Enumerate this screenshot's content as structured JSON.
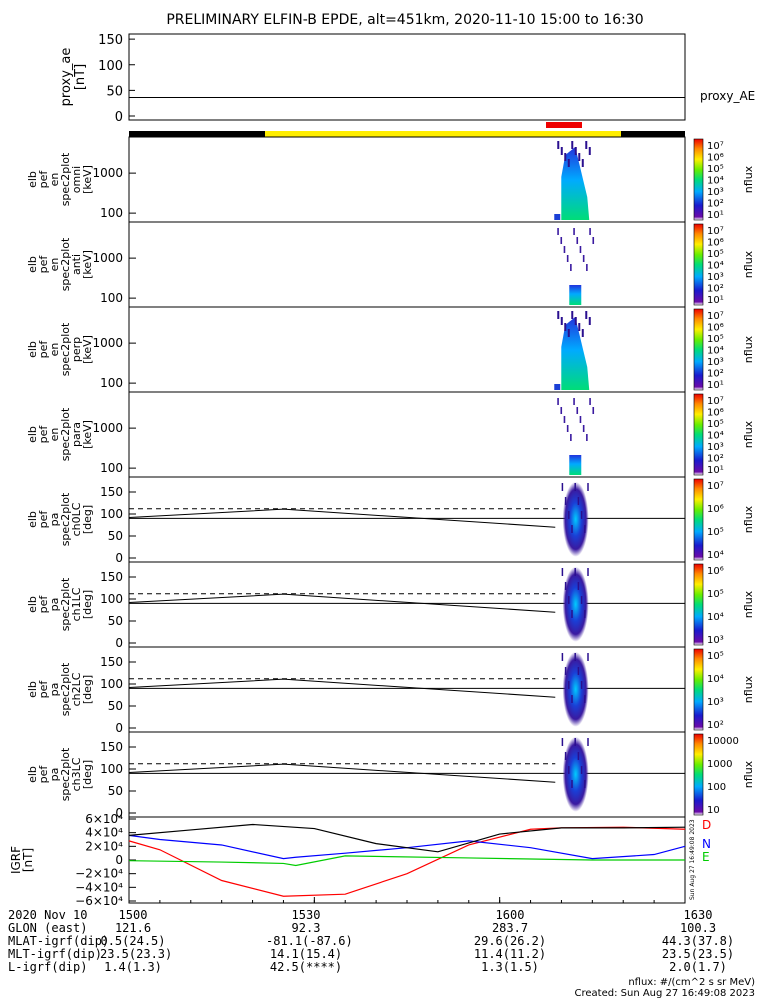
{
  "title": "PRELIMINARY ELFIN-B EPDE, alt=451km, 2020-11-10 15:00 to 16:30",
  "chart_data": [
    {
      "type": "line",
      "ylabel_lines": [
        "proxy_ae",
        "[nT]"
      ],
      "yticks": [
        "150",
        "100",
        "50",
        "0"
      ],
      "ylim": [
        0,
        150
      ],
      "legend": "proxy_AE",
      "series": [
        {
          "name": "proxy_AE",
          "x": [
            0,
            90
          ],
          "y": [
            36,
            36
          ]
        }
      ]
    },
    {
      "type": "heatmap",
      "ylabel_lines": [
        "elb",
        "pef",
        "en",
        "spec2plot",
        "omni",
        "[keV]"
      ],
      "yticks": [
        "1000",
        "100"
      ],
      "colorbar": {
        "label": "nflux",
        "ticks": [
          "10⁷",
          "10⁶",
          "10⁵",
          "10⁴",
          "10³",
          "10²",
          "10¹"
        ]
      }
    },
    {
      "type": "heatmap",
      "ylabel_lines": [
        "elb",
        "pef",
        "en",
        "spec2plot",
        "anti",
        "[keV]"
      ],
      "yticks": [
        "1000",
        "100"
      ],
      "colorbar": {
        "label": "nflux",
        "ticks": [
          "10⁷",
          "10⁶",
          "10⁵",
          "10⁴",
          "10³",
          "10²",
          "10¹"
        ]
      }
    },
    {
      "type": "heatmap",
      "ylabel_lines": [
        "elb",
        "pef",
        "en",
        "spec2plot",
        "perp",
        "[keV]"
      ],
      "yticks": [
        "1000",
        "100"
      ],
      "colorbar": {
        "label": "nflux",
        "ticks": [
          "10⁷",
          "10⁶",
          "10⁵",
          "10⁴",
          "10³",
          "10²",
          "10¹"
        ]
      }
    },
    {
      "type": "heatmap",
      "ylabel_lines": [
        "elb",
        "pef",
        "en",
        "spec2plot",
        "para",
        "[keV]"
      ],
      "yticks": [
        "1000",
        "100"
      ],
      "colorbar": {
        "label": "nflux",
        "ticks": [
          "10⁷",
          "10⁶",
          "10⁵",
          "10⁴",
          "10³",
          "10²",
          "10¹"
        ]
      }
    },
    {
      "type": "heatmap",
      "ylabel_lines": [
        "elb",
        "pef",
        "pa",
        "spec2plot",
        "ch0LC",
        "[deg]"
      ],
      "yticks": [
        "150",
        "100",
        "50",
        "0"
      ],
      "colorbar": {
        "label": "nflux",
        "ticks": [
          "10⁷",
          "10⁶",
          "10⁵",
          "10⁴"
        ]
      }
    },
    {
      "type": "heatmap",
      "ylabel_lines": [
        "elb",
        "pef",
        "pa",
        "spec2plot",
        "ch1LC",
        "[deg]"
      ],
      "yticks": [
        "150",
        "100",
        "50",
        "0"
      ],
      "colorbar": {
        "label": "nflux",
        "ticks": [
          "10⁶",
          "10⁵",
          "10⁴",
          "10³"
        ]
      }
    },
    {
      "type": "heatmap",
      "ylabel_lines": [
        "elb",
        "pef",
        "pa",
        "spec2plot",
        "ch2LC",
        "[deg]"
      ],
      "yticks": [
        "150",
        "100",
        "50",
        "0"
      ],
      "colorbar": {
        "label": "nflux",
        "ticks": [
          "10⁵",
          "10⁴",
          "10³",
          "10²"
        ]
      }
    },
    {
      "type": "heatmap",
      "ylabel_lines": [
        "elb",
        "pef",
        "pa",
        "spec2plot",
        "ch3LC",
        "[deg]"
      ],
      "yticks": [
        "150",
        "100",
        "50",
        "0"
      ],
      "colorbar": {
        "label": "nflux",
        "ticks": [
          "10000",
          "1000",
          "100",
          "10"
        ]
      }
    },
    {
      "type": "line",
      "ylabel_lines": [
        "IGRF",
        "[nT]"
      ],
      "yticks": [
        "6×10⁴",
        "4×10⁴",
        "2×10⁴",
        "0",
        "−2×10⁴",
        "−4×10⁴",
        "−6×10⁴"
      ],
      "ylim": [
        -60000,
        60000
      ],
      "series": [
        {
          "name": "D",
          "color": "#ff0000",
          "x": [
            0,
            5,
            15,
            25,
            35,
            45,
            55,
            65,
            70,
            80,
            90
          ],
          "y": [
            28000,
            15000,
            -30000,
            -53000,
            -50000,
            -20000,
            22000,
            45000,
            47000,
            48000,
            45000
          ]
        },
        {
          "name": "N",
          "color": "#0000ff",
          "x": [
            0,
            5,
            15,
            25,
            27,
            35,
            45,
            55,
            65,
            75,
            85,
            90
          ],
          "y": [
            36000,
            30000,
            22000,
            2000,
            4000,
            10000,
            18000,
            28000,
            18000,
            2000,
            8000,
            20000
          ]
        },
        {
          "name": "E",
          "color": "#00cc00",
          "x": [
            0,
            15,
            25,
            27,
            35,
            55,
            75,
            90
          ],
          "y": [
            -1000,
            -3000,
            -5000,
            -8000,
            6000,
            3000,
            0,
            0
          ]
        },
        {
          "name": "",
          "color": "#000000",
          "x": [
            0,
            10,
            20,
            30,
            40,
            50,
            60,
            70,
            80,
            90
          ],
          "y": [
            36000,
            44000,
            52000,
            46000,
            24000,
            12000,
            38000,
            47000,
            47000,
            48000
          ]
        }
      ]
    }
  ],
  "x_axis": {
    "ticks": [
      "1500",
      "1530",
      "1600",
      "1630"
    ],
    "rows": [
      {
        "label": "2020 Nov 10",
        "values": [
          "1500",
          "1530",
          "1600",
          "1630"
        ]
      },
      {
        "label": "GLON (east)",
        "values": [
          "121.6",
          "92.3",
          "283.7",
          "100.3"
        ]
      },
      {
        "label": "MLAT-igrf(dip)",
        "values": [
          "0.5(24.5)",
          "-81.1(-87.6)",
          "29.6(26.2)",
          "44.3(37.8)"
        ]
      },
      {
        "label": "MLT-igrf(dip)",
        "values": [
          "23.5(23.3)",
          "14.1(15.4)",
          "11.4(11.2)",
          "23.5(23.5)"
        ]
      },
      {
        "label": "L-igrf(dip)",
        "values": [
          "1.4(1.3)",
          "42.5(****)",
          "1.3(1.5)",
          "2.0(1.7)"
        ]
      }
    ]
  },
  "footer": {
    "units": "nflux: #/(cm^2 s sr MeV)",
    "created": "Created: Sun Aug 27 16:49:08 2023",
    "side_stamp": "Sun Aug 27 16:49:08 2023"
  }
}
